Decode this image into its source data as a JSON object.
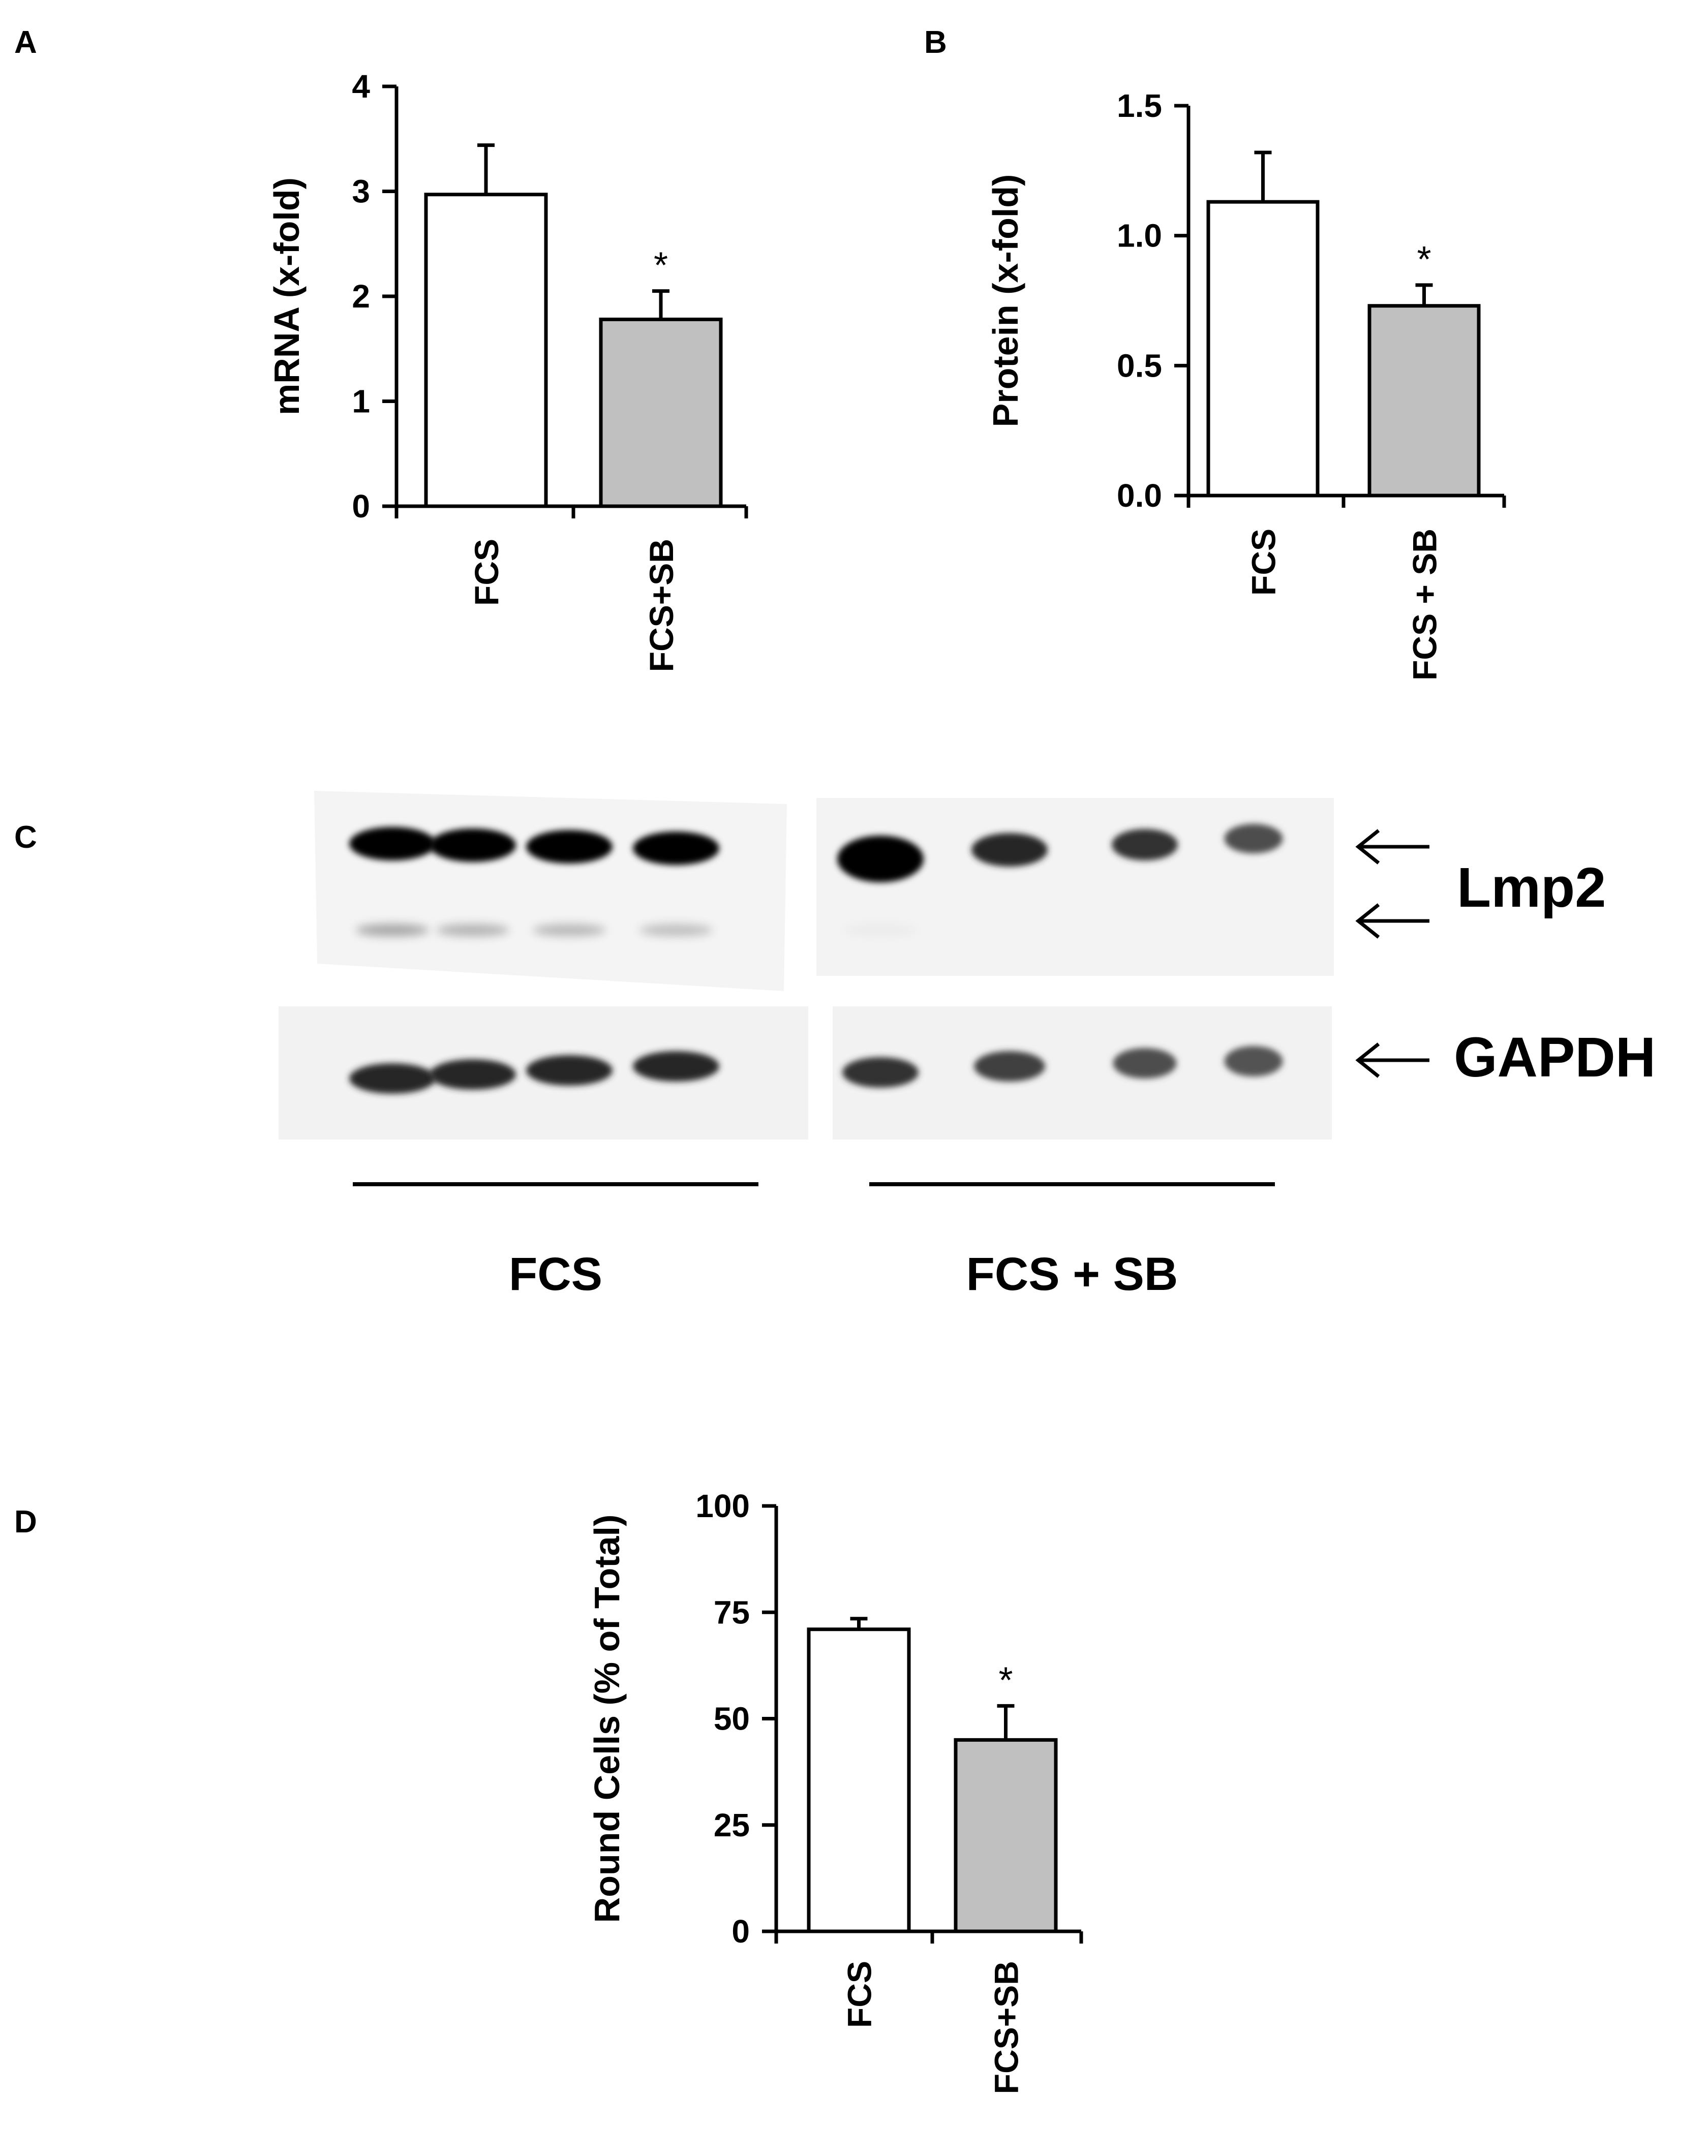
{
  "figure": {
    "panels": {
      "A": "A",
      "B": "B",
      "C": "C",
      "D": "D"
    }
  },
  "chart_data": [
    {
      "panel": "A",
      "type": "bar",
      "categories": [
        "FCS",
        "FCS+SB"
      ],
      "values": [
        2.97,
        1.78
      ],
      "errors": [
        0.47,
        0.27
      ],
      "significance": [
        "",
        "*"
      ],
      "ylabel": "mRNA (x-fold)",
      "xlabel": "",
      "ylim": [
        0,
        4
      ],
      "yticks": [
        0,
        1,
        2,
        3,
        4
      ],
      "ytick_labels": [
        "0",
        "1",
        "2",
        "3",
        "4"
      ],
      "fill_colors": [
        "#ffffff",
        "#c0c0c0"
      ],
      "grid": false
    },
    {
      "panel": "B",
      "type": "bar",
      "categories": [
        "FCS",
        "FCS + SB"
      ],
      "values": [
        1.13,
        0.73
      ],
      "errors": [
        0.19,
        0.08
      ],
      "significance": [
        "",
        "*"
      ],
      "ylabel": "Protein (x-fold)",
      "xlabel": "",
      "ylim": [
        0,
        1.5
      ],
      "yticks": [
        0,
        0.5,
        1.0,
        1.5
      ],
      "ytick_labels": [
        "0.0",
        "0.5",
        "1.0",
        "1.5"
      ],
      "fill_colors": [
        "#ffffff",
        "#c0c0c0"
      ],
      "grid": false
    },
    {
      "panel": "D",
      "type": "bar",
      "categories": [
        "FCS",
        "FCS+SB"
      ],
      "values": [
        71,
        45
      ],
      "errors": [
        2.5,
        8
      ],
      "significance": [
        "",
        "*"
      ],
      "ylabel": "Round Cells (% of Total)",
      "xlabel": "",
      "ylim": [
        0,
        100
      ],
      "yticks": [
        0,
        25,
        50,
        75,
        100
      ],
      "ytick_labels": [
        "0",
        "25",
        "50",
        "75",
        "100"
      ],
      "fill_colors": [
        "#ffffff",
        "#c0c0c0"
      ],
      "grid": false
    }
  ],
  "blot": {
    "bands": {
      "Lmp2": "Lmp2",
      "GAPDH": "GAPDH"
    },
    "groups": [
      "FCS",
      "FCS + SB"
    ],
    "lanes_per_group": 4,
    "lmp2_upper_intensity": [
      1.0,
      1.0,
      1.0,
      1.0,
      1.0,
      0.85,
      0.8,
      0.7
    ],
    "lmp2_lower_intensity": [
      0.35,
      0.3,
      0.28,
      0.25,
      0.08,
      0.0,
      0.0,
      0.0
    ],
    "gapdh_intensity": [
      0.85,
      0.85,
      0.85,
      0.85,
      0.8,
      0.75,
      0.7,
      0.68
    ]
  }
}
